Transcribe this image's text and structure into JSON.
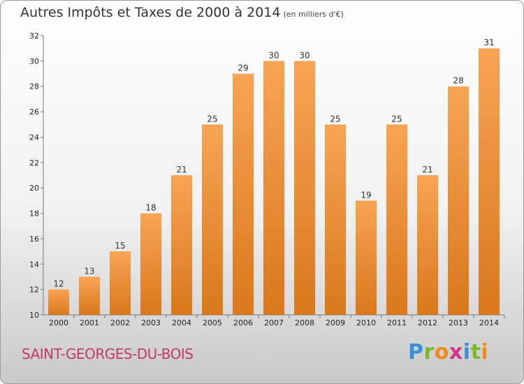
{
  "title": "Autres Impôts et Taxes de 2000 à 2014",
  "unit_note": "(en milliers d'€)",
  "commune": "SAINT-GEORGES-DU-BOIS",
  "logo": {
    "text": "Proxiti",
    "letters": [
      "P",
      "r",
      "o",
      "x",
      "i",
      "t",
      "i"
    ],
    "colors": [
      "#3a8fd6",
      "#7cb82f",
      "#f08a1c",
      "#d4338a",
      "#3a8fd6",
      "#7cb82f",
      "#f08a1c"
    ]
  },
  "colors": {
    "bar_light": "#f7a455",
    "bar_dark": "#d9781c",
    "commune": "#c23a6c"
  },
  "chart_data": {
    "type": "bar",
    "categories": [
      "2000",
      "2001",
      "2002",
      "2003",
      "2004",
      "2005",
      "2006",
      "2007",
      "2008",
      "2009",
      "2010",
      "2011",
      "2012",
      "2013",
      "2014"
    ],
    "values": [
      12,
      13,
      15,
      18,
      21,
      25,
      29,
      30,
      30,
      25,
      19,
      25,
      21,
      28,
      31
    ],
    "ylim": [
      10,
      32
    ],
    "yticks": [
      10,
      12,
      14,
      16,
      18,
      20,
      22,
      24,
      26,
      28,
      30,
      32
    ],
    "grid": false,
    "legend": "none"
  }
}
